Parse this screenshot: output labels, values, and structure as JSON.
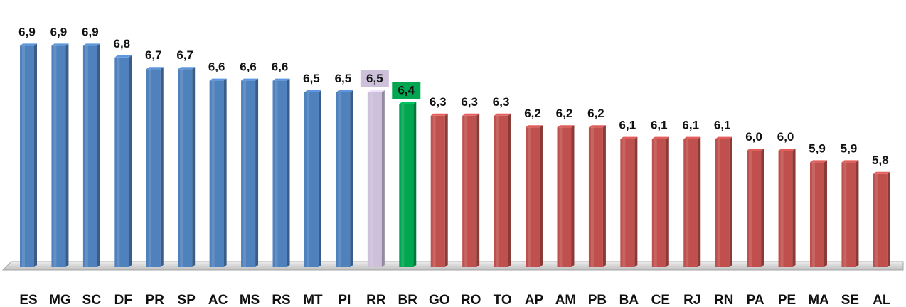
{
  "chart_data": {
    "type": "bar",
    "title": "",
    "xlabel": "",
    "ylabel": "",
    "ylim": [
      5.0,
      7.0
    ],
    "grid": false,
    "legend": "none",
    "categories": [
      "ES",
      "MG",
      "SC",
      "DF",
      "PR",
      "SP",
      "AC",
      "MS",
      "RS",
      "MT",
      "PI",
      "RR",
      "BR",
      "GO",
      "RO",
      "TO",
      "AP",
      "AM",
      "PB",
      "BA",
      "CE",
      "RJ",
      "RN",
      "PA",
      "PE",
      "MA",
      "SE",
      "AL"
    ],
    "values": [
      6.9,
      6.9,
      6.9,
      6.8,
      6.7,
      6.7,
      6.6,
      6.6,
      6.6,
      6.5,
      6.5,
      6.5,
      6.4,
      6.3,
      6.3,
      6.3,
      6.2,
      6.2,
      6.2,
      6.1,
      6.1,
      6.1,
      6.1,
      6.0,
      6.0,
      5.9,
      5.9,
      5.8
    ],
    "value_labels": [
      "6,9",
      "6,9",
      "6,9",
      "6,8",
      "6,7",
      "6,7",
      "6,6",
      "6,6",
      "6,6",
      "6,5",
      "6,5",
      "6,5",
      "6,4",
      "6,3",
      "6,3",
      "6,3",
      "6,2",
      "6,2",
      "6,2",
      "6,1",
      "6,1",
      "6,1",
      "6,1",
      "6,0",
      "6,0",
      "5,9",
      "5,9",
      "5,8"
    ],
    "bar_groups": [
      "above",
      "above",
      "above",
      "above",
      "above",
      "above",
      "above",
      "above",
      "above",
      "above",
      "above",
      "highlight",
      "national",
      "below",
      "below",
      "below",
      "below",
      "below",
      "below",
      "below",
      "below",
      "below",
      "below",
      "below",
      "below",
      "below",
      "below",
      "below"
    ],
    "colors": {
      "above": "#4f81bd",
      "highlight": "#ccc0da",
      "national": "#00a650",
      "below": "#c0504d",
      "highlight_label_bg": "#ccc0da",
      "national_label_bg": "#00a650",
      "national_label_text": "#ffffff",
      "floor": "#d9d9d9"
    }
  }
}
